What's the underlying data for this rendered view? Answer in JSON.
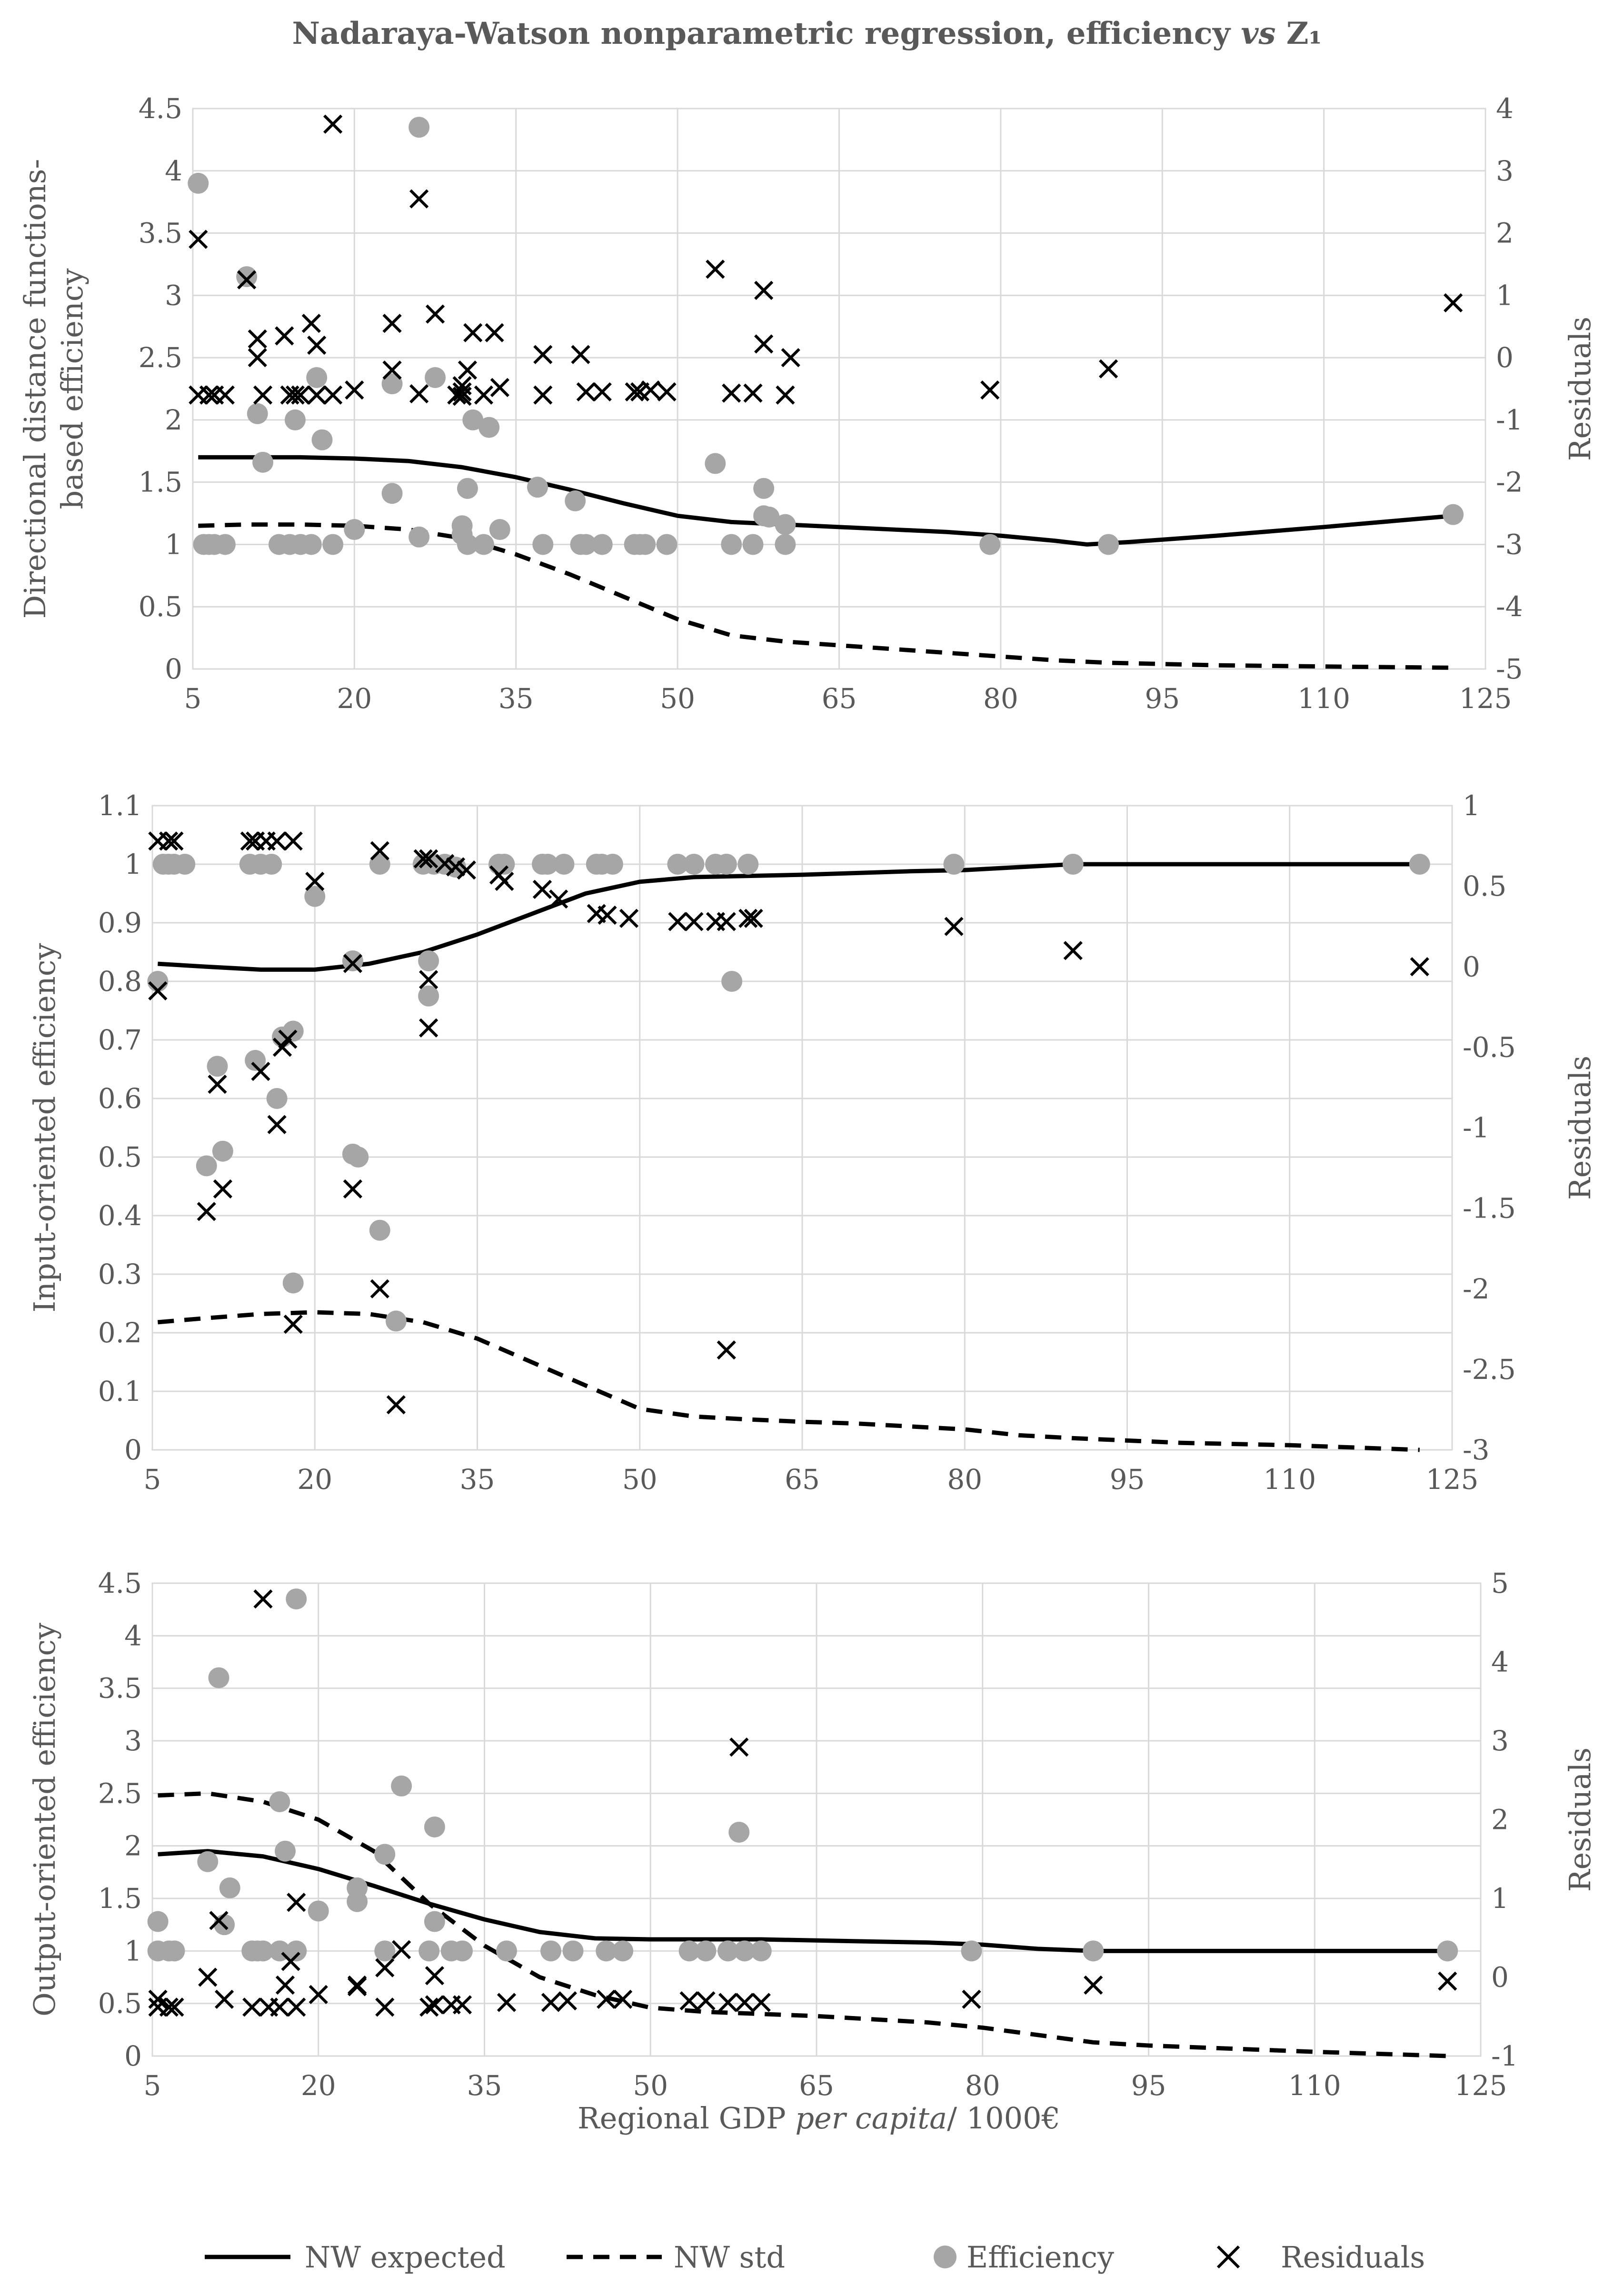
{
  "figure_title": "Nadaraya-Watson nonparametric regression, efficiency vs Z₁",
  "figure_title_parts": {
    "a": "Nadaraya-Watson nonparametric regression, efficiency ",
    "vs": "vs",
    "z": " Z₁"
  },
  "xlabel_parts": {
    "a": "Regional GDP ",
    "italic": "per capita",
    "b": "/ 1000€"
  },
  "colors": {
    "grid": "#d9d9d9",
    "axis_text": "#595959",
    "line": "#000000",
    "marker_fill": "#a6a6a6",
    "cross": "#000000"
  },
  "legend": [
    {
      "key": "expected",
      "label": "NW expected",
      "style": "solid-line"
    },
    {
      "key": "std",
      "label": "NW std",
      "style": "dashed-line"
    },
    {
      "key": "efficiency",
      "label": "Efficiency",
      "style": "grey-circle"
    },
    {
      "key": "residuals",
      "label": "Residuals",
      "style": "x-marker"
    }
  ],
  "chart_data": [
    {
      "type": "scatter",
      "panel": "directional-distance",
      "ylabel_lines": [
        "Directional distance functions-",
        "based efficiency"
      ],
      "y2label": "Residuals",
      "xlim": [
        5,
        125
      ],
      "xticks": [
        "5",
        "20",
        "35",
        "50",
        "65",
        "80",
        "95",
        "110",
        "125"
      ],
      "ylim": [
        0,
        4.5
      ],
      "yticks": [
        "0",
        "0.5",
        "1",
        "1.5",
        "2",
        "2.5",
        "3",
        "3.5",
        "4",
        "4.5"
      ],
      "y2lim": [
        -5,
        4
      ],
      "y2ticks": [
        "-5",
        "-4",
        "-3",
        "-2",
        "-1",
        "0",
        "1",
        "2",
        "3",
        "4"
      ],
      "nw_expected": {
        "x": [
          5.5,
          10,
          15,
          20,
          25,
          30,
          35,
          40,
          45,
          50,
          55,
          60,
          65,
          70,
          75,
          80,
          85,
          88,
          92,
          100,
          110,
          122
        ],
        "y": [
          1.7,
          1.7,
          1.7,
          1.69,
          1.67,
          1.62,
          1.54,
          1.44,
          1.33,
          1.23,
          1.18,
          1.16,
          1.14,
          1.12,
          1.1,
          1.07,
          1.03,
          1.0,
          1.02,
          1.07,
          1.14,
          1.23
        ]
      },
      "nw_std": {
        "x": [
          5.5,
          10,
          15,
          20,
          25,
          30,
          35,
          40,
          45,
          50,
          55,
          60,
          65,
          70,
          75,
          80,
          85,
          90,
          95,
          100,
          110,
          122
        ],
        "y": [
          1.15,
          1.16,
          1.16,
          1.15,
          1.12,
          1.05,
          0.92,
          0.76,
          0.58,
          0.4,
          0.27,
          0.22,
          0.19,
          0.16,
          0.13,
          0.1,
          0.07,
          0.05,
          0.04,
          0.03,
          0.02,
          0.01
        ]
      },
      "efficiency": {
        "x": [
          5.5,
          6,
          6.5,
          7,
          8,
          10,
          11,
          11.5,
          13,
          14,
          14.5,
          15,
          16,
          16.5,
          17,
          18,
          20,
          23.5,
          23.5,
          26,
          26,
          27.5,
          30,
          30,
          30.5,
          30.5,
          31,
          32,
          32.5,
          33.5,
          37,
          37.5,
          40.5,
          41,
          41.5,
          43,
          46,
          46.5,
          47,
          49,
          53.5,
          55,
          57,
          58,
          58.5,
          58,
          60,
          60,
          79,
          90,
          122
        ],
        "y": [
          3.9,
          1.0,
          1.0,
          1.0,
          1.0,
          3.15,
          2.05,
          1.66,
          1.0,
          1.0,
          2.0,
          1.0,
          1.0,
          2.34,
          1.84,
          1.0,
          1.12,
          1.41,
          2.29,
          4.35,
          1.06,
          2.34,
          1.15,
          1.08,
          1.0,
          1.45,
          2.0,
          1.0,
          1.94,
          1.12,
          1.46,
          1.0,
          1.35,
          1.0,
          1.0,
          1.0,
          1.0,
          1.0,
          1.0,
          1.0,
          1.65,
          1.0,
          1.0,
          1.45,
          1.22,
          1.23,
          1.16,
          1.0,
          1.0,
          1.0,
          1.24
        ]
      },
      "residuals": {
        "x": [
          5.5,
          5.5,
          6.5,
          7,
          8,
          10,
          11,
          11,
          11.5,
          13.5,
          14,
          14.5,
          15,
          16,
          16.5,
          16.5,
          16.5,
          18,
          18,
          20,
          23.5,
          23.5,
          26,
          26,
          27.5,
          29.5,
          30,
          30,
          30,
          30.5,
          31,
          32,
          33,
          33.5,
          37.5,
          37.5,
          41,
          41.5,
          43,
          46,
          46.5,
          47.5,
          49,
          53.5,
          55,
          57,
          58,
          58,
          60,
          60.5,
          79,
          90,
          122
        ],
        "y": [
          1.9,
          -0.6,
          -0.6,
          -0.6,
          -0.6,
          1.25,
          0.3,
          0,
          -0.6,
          0.35,
          -0.6,
          -0.6,
          -0.6,
          0.55,
          0.2,
          -0.6,
          -0.6,
          3.75,
          -0.6,
          -0.52,
          0.55,
          -0.2,
          2.55,
          -0.58,
          0.7,
          -0.6,
          -0.45,
          -0.55,
          -0.62,
          -0.2,
          0.4,
          -0.6,
          0.4,
          -0.48,
          0.05,
          -0.6,
          0.05,
          -0.55,
          -0.55,
          -0.55,
          -0.55,
          -0.52,
          -0.55,
          1.42,
          -0.57,
          -0.57,
          1.08,
          0.22,
          -0.6,
          0.0,
          -0.52,
          -0.18,
          0.88
        ]
      }
    },
    {
      "type": "scatter",
      "panel": "input-oriented",
      "ylabel_lines": [
        "Input-oriented efficiency"
      ],
      "y2label": "Residuals",
      "xlim": [
        5,
        125
      ],
      "xticks": [
        "5",
        "20",
        "35",
        "50",
        "65",
        "80",
        "95",
        "110",
        "125"
      ],
      "ylim": [
        0,
        1.1
      ],
      "yticks": [
        "0",
        "0.1",
        "0.2",
        "0.3",
        "0.4",
        "0.5",
        "0.6",
        "0.7",
        "0.8",
        "0.9",
        "1",
        "1.1"
      ],
      "y2lim": [
        -3,
        1
      ],
      "y2ticks": [
        "-3",
        "-2.5",
        "-2",
        "-1.5",
        "-1",
        "-0.5",
        "0",
        "0.5",
        "1"
      ],
      "nw_expected": {
        "x": [
          5.5,
          10,
          15,
          20,
          25,
          30,
          35,
          40,
          45,
          50,
          55,
          60,
          65,
          70,
          75,
          80,
          85,
          90,
          95,
          100,
          110,
          122
        ],
        "y": [
          0.83,
          0.825,
          0.82,
          0.82,
          0.83,
          0.85,
          0.88,
          0.915,
          0.95,
          0.97,
          0.978,
          0.98,
          0.982,
          0.985,
          0.988,
          0.99,
          0.995,
          1.0,
          1.0,
          1.0,
          1.0,
          1.0
        ]
      },
      "nw_std": {
        "x": [
          5.5,
          10,
          15,
          20,
          25,
          30,
          35,
          40,
          45,
          50,
          55,
          60,
          65,
          70,
          75,
          80,
          85,
          90,
          95,
          100,
          110,
          122
        ],
        "y": [
          0.218,
          0.225,
          0.232,
          0.235,
          0.232,
          0.218,
          0.19,
          0.15,
          0.11,
          0.07,
          0.057,
          0.052,
          0.048,
          0.045,
          0.04,
          0.035,
          0.025,
          0.02,
          0.016,
          0.012,
          0.008,
          0.0
        ]
      },
      "efficiency": {
        "x": [
          5.5,
          6,
          6.5,
          7,
          8,
          10,
          11,
          11.5,
          14,
          14.5,
          15,
          16,
          16.5,
          17,
          18,
          18,
          20,
          23.5,
          23.5,
          24,
          26,
          26,
          27.5,
          30,
          30.5,
          30.5,
          31,
          32,
          33,
          37,
          37.5,
          41,
          41.5,
          43,
          46,
          46.5,
          47.5,
          53.5,
          55,
          57,
          58,
          58.5,
          58,
          60,
          79,
          90,
          122
        ],
        "y": [
          0.8,
          1.0,
          1.0,
          1.0,
          1.0,
          0.485,
          0.655,
          0.51,
          1.0,
          0.665,
          1.0,
          1.0,
          0.6,
          0.705,
          0.715,
          0.285,
          0.945,
          0.835,
          0.505,
          0.5,
          0.375,
          1.0,
          0.22,
          1.0,
          0.835,
          0.775,
          1.0,
          1.0,
          0.995,
          1.0,
          1.0,
          1.0,
          1.0,
          1.0,
          1.0,
          1.0,
          1.0,
          1.0,
          1.0,
          1.0,
          1.0,
          0.8,
          1.0,
          1.0,
          1.0,
          1.0,
          1.0
        ]
      },
      "residuals": {
        "x": [
          5.5,
          5.5,
          6.5,
          7,
          10,
          11,
          11.5,
          14,
          14.5,
          15,
          15.5,
          16.5,
          16.5,
          17,
          17.5,
          18,
          18,
          20,
          23.5,
          23.5,
          26,
          26,
          27.5,
          30,
          30.5,
          30.5,
          30.5,
          32,
          33,
          34,
          37,
          37.5,
          41,
          42.5,
          46,
          47,
          49,
          53.5,
          55,
          57,
          58,
          58,
          60,
          60.5,
          79,
          90,
          122
        ],
        "y": [
          -0.15,
          0.78,
          0.78,
          0.78,
          -1.52,
          -0.73,
          -1.38,
          0.78,
          0.78,
          -0.65,
          0.78,
          -0.98,
          0.78,
          -0.5,
          -0.45,
          -2.22,
          0.78,
          0.53,
          0.02,
          -1.38,
          -2.0,
          0.72,
          -2.72,
          0.67,
          0.67,
          -0.38,
          -0.08,
          0.64,
          0.62,
          0.6,
          0.57,
          0.53,
          0.48,
          0.42,
          0.33,
          0.32,
          0.3,
          0.28,
          0.28,
          0.28,
          -2.38,
          0.28,
          0.3,
          0.3,
          0.25,
          0.1,
          0.0
        ]
      }
    },
    {
      "type": "scatter",
      "panel": "output-oriented",
      "ylabel_lines": [
        "Output-oriented efficiency"
      ],
      "y2label": "Residuals",
      "xlabel": "Regional GDP per capita/ 1000€",
      "xlim": [
        5,
        125
      ],
      "xticks": [
        "5",
        "20",
        "35",
        "50",
        "65",
        "80",
        "95",
        "110",
        "125"
      ],
      "ylim": [
        0,
        4.5
      ],
      "yticks": [
        "0",
        "0.5",
        "1",
        "1.5",
        "2",
        "2.5",
        "3",
        "3.5",
        "4",
        "4.5"
      ],
      "y2lim": [
        -1,
        5
      ],
      "y2ticks": [
        "-1",
        "0",
        "1",
        "2",
        "3",
        "4",
        "5"
      ],
      "nw_expected": {
        "x": [
          5.5,
          10,
          15,
          20,
          25,
          30,
          35,
          40,
          45,
          50,
          55,
          60,
          65,
          70,
          75,
          80,
          85,
          90,
          95,
          100,
          110,
          122
        ],
        "y": [
          1.92,
          1.95,
          1.9,
          1.78,
          1.62,
          1.45,
          1.3,
          1.18,
          1.12,
          1.11,
          1.11,
          1.11,
          1.1,
          1.09,
          1.08,
          1.06,
          1.02,
          1.0,
          1.0,
          1.0,
          1.0,
          1.0
        ]
      },
      "nw_std": {
        "x": [
          5.5,
          10,
          15,
          20,
          25,
          30,
          35,
          40,
          45,
          50,
          55,
          60,
          65,
          70,
          75,
          80,
          85,
          90,
          95,
          100,
          110,
          122
        ],
        "y": [
          2.48,
          2.5,
          2.42,
          2.25,
          1.95,
          1.45,
          1.05,
          0.75,
          0.58,
          0.46,
          0.42,
          0.4,
          0.38,
          0.35,
          0.32,
          0.27,
          0.2,
          0.13,
          0.1,
          0.08,
          0.04,
          0.0
        ]
      },
      "efficiency": {
        "x": [
          5.5,
          5.5,
          6.5,
          7,
          10,
          11,
          11.5,
          12,
          14,
          14.5,
          15,
          16.5,
          16.5,
          17,
          18,
          18,
          20,
          23.5,
          23.5,
          26,
          26,
          27.5,
          30,
          30.5,
          30.5,
          32,
          33,
          37,
          41,
          43,
          46,
          47.5,
          53.5,
          55,
          57,
          58,
          58.5,
          60,
          79,
          90,
          122
        ],
        "y": [
          1.28,
          1.0,
          1.0,
          1.0,
          1.85,
          3.6,
          1.25,
          1.6,
          1.0,
          1.0,
          1.0,
          2.42,
          1.0,
          1.95,
          4.35,
          1.0,
          1.38,
          1.6,
          1.47,
          1.92,
          1.0,
          2.57,
          1.0,
          2.18,
          1.28,
          1.0,
          1.0,
          1.0,
          1.0,
          1.0,
          1.0,
          1.0,
          1.0,
          1.0,
          1.0,
          2.13,
          1.0,
          1.0,
          1.0,
          1.0,
          1.0
        ]
      },
      "residuals": {
        "x": [
          5.5,
          5.5,
          6.5,
          7,
          10,
          11,
          11.5,
          14,
          15,
          15.5,
          16.5,
          17,
          17.5,
          18,
          18,
          20,
          23.5,
          23.5,
          26,
          26,
          27.5,
          30,
          30.5,
          30.5,
          32,
          33,
          37,
          41,
          42.5,
          46,
          47.5,
          53.5,
          55,
          57,
          58.5,
          58,
          60,
          79,
          90,
          122
        ],
        "y": [
          -0.28,
          -0.38,
          -0.38,
          -0.38,
          0.0,
          0.72,
          -0.28,
          -0.38,
          4.8,
          -0.38,
          -0.38,
          -0.1,
          0.2,
          0.95,
          -0.38,
          -0.22,
          -0.12,
          -0.1,
          0.12,
          -0.38,
          0.35,
          -0.38,
          -0.35,
          0.02,
          -0.35,
          -0.35,
          -0.32,
          -0.32,
          -0.3,
          -0.28,
          -0.28,
          -0.3,
          -0.3,
          -0.32,
          -0.32,
          2.92,
          -0.32,
          -0.28,
          -0.1,
          -0.05
        ]
      }
    }
  ]
}
